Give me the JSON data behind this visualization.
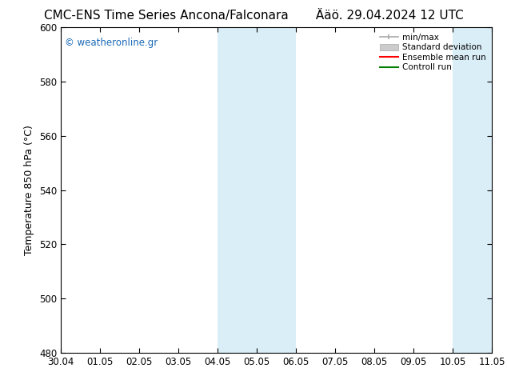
{
  "title": "CMC-ENS Time Series Ancona/Falconara",
  "title2": "Ääö. 29.04.2024 12 UTC",
  "ylabel": "Temperature 850 hPa (°C)",
  "xlabel_ticks": [
    "30.04",
    "01.05",
    "02.05",
    "03.05",
    "04.05",
    "05.05",
    "06.05",
    "07.05",
    "08.05",
    "09.05",
    "10.05",
    "11.05"
  ],
  "ylim": [
    480,
    600
  ],
  "yticks": [
    480,
    500,
    520,
    540,
    560,
    580,
    600
  ],
  "xlim": [
    0,
    11
  ],
  "background_color": "#ffffff",
  "plot_bg_color": "#ffffff",
  "shaded_bands": [
    {
      "x_start": 4,
      "x_end": 6,
      "color": "#daeef8"
    },
    {
      "x_start": 10,
      "x_end": 11,
      "color": "#daeef8"
    }
  ],
  "watermark": "© weatheronline.gr",
  "watermark_color": "#1a6ab5",
  "legend": [
    {
      "label": "min/max",
      "color": "#aaaaaa",
      "lw": 1.2
    },
    {
      "label": "Standard deviation",
      "color": "#cccccc",
      "lw": 6
    },
    {
      "label": "Ensemble mean run",
      "color": "#ff0000",
      "lw": 1.5
    },
    {
      "label": "Controll run",
      "color": "#008000",
      "lw": 1.5
    }
  ],
  "tick_label_fontsize": 8.5,
  "axis_label_fontsize": 9,
  "title_fontsize": 11
}
